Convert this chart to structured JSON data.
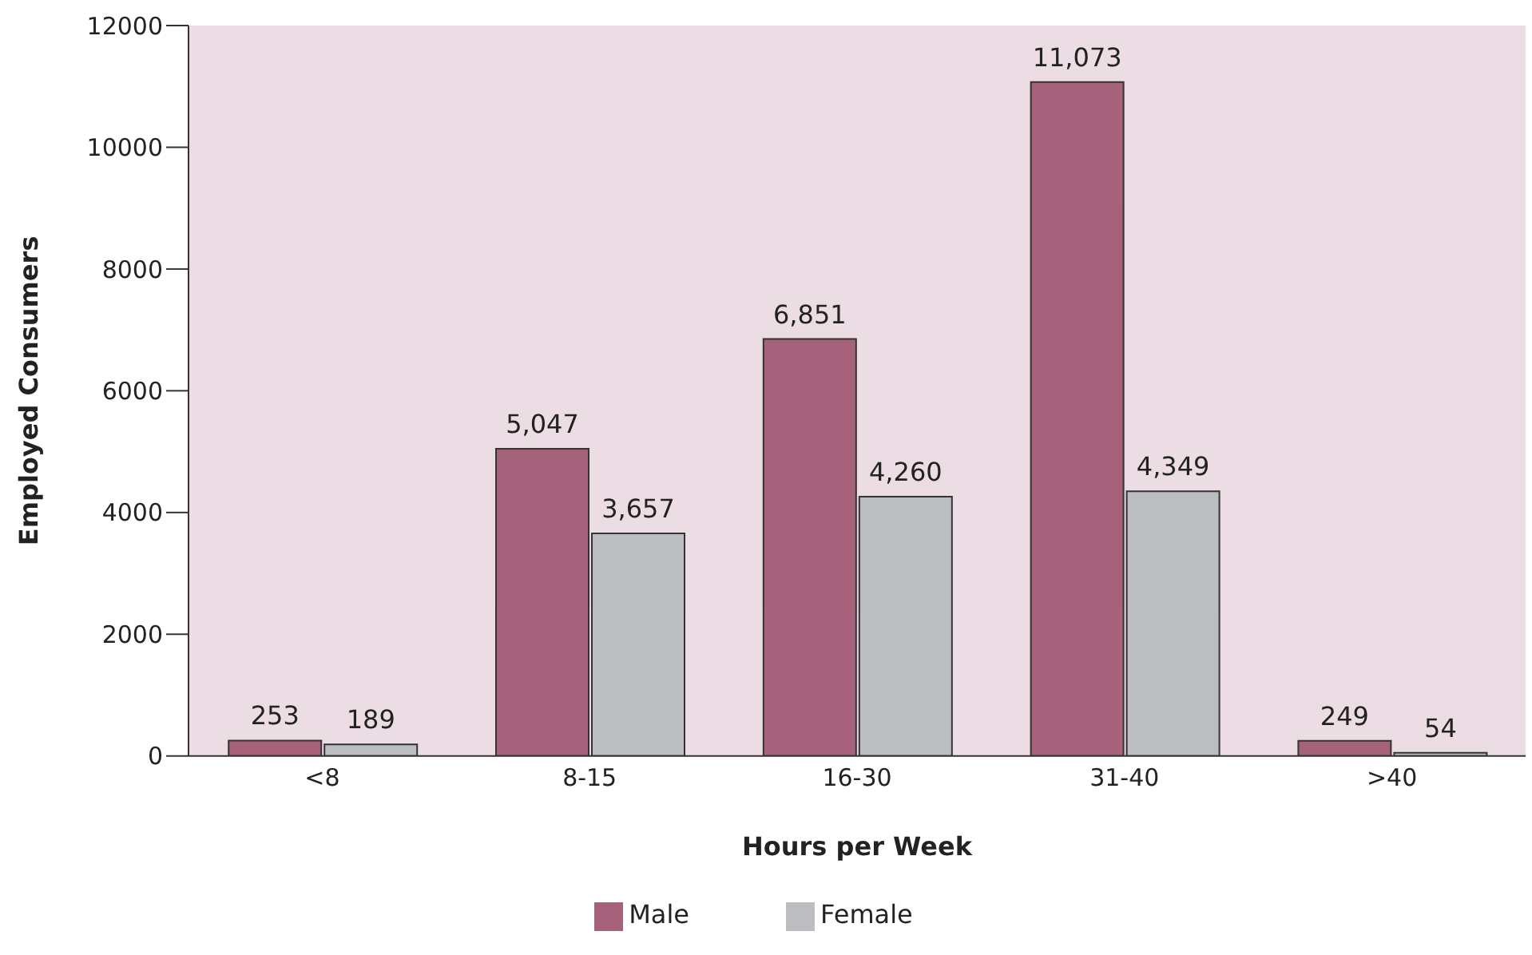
{
  "chart_data": {
    "type": "bar",
    "xlabel": "Hours per Week",
    "ylabel": "Employed Consumers",
    "categories": [
      "<8",
      "8-15",
      "16-30",
      "31-40",
      ">40"
    ],
    "series": [
      {
        "name": "Male",
        "color": "#a6627a",
        "values": [
          253,
          5047,
          6851,
          11073,
          249
        ],
        "value_labels": [
          "253",
          "5,047",
          "6,851",
          "11,073",
          "249"
        ]
      },
      {
        "name": "Female",
        "color": "#bcbdc1",
        "values": [
          189,
          3657,
          4260,
          4349,
          54
        ],
        "value_labels": [
          "189",
          "3,657",
          "4,260",
          "4,349",
          "54"
        ]
      }
    ],
    "ylim": [
      0,
      12000
    ],
    "yticks": [
      0,
      2000,
      4000,
      6000,
      8000,
      10000,
      12000
    ],
    "grid": false,
    "legend": "bottom"
  }
}
